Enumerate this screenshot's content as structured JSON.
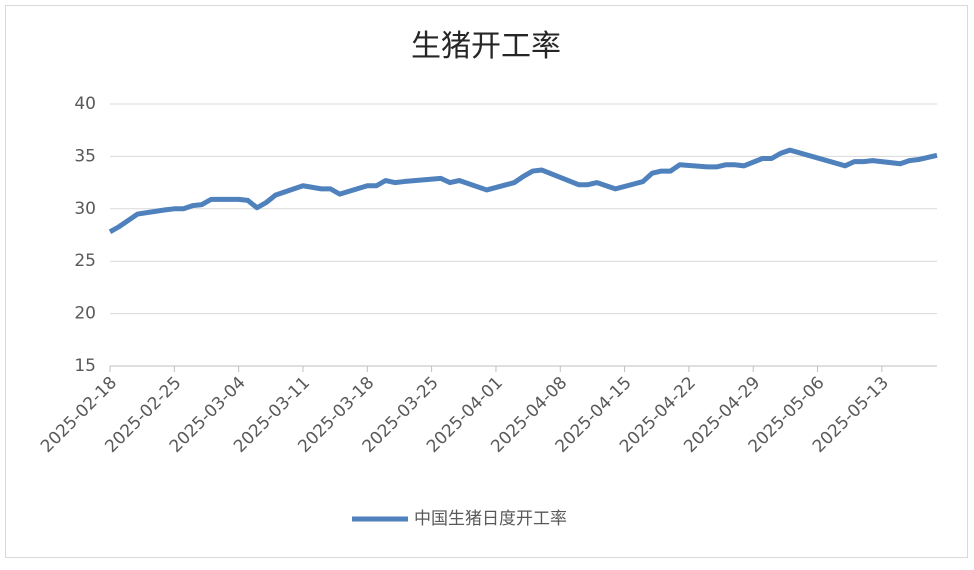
{
  "chart_data": {
    "type": "line",
    "title": "生猪开工率",
    "x": [
      "2025-02-18",
      "2025-02-19",
      "2025-02-20",
      "2025-02-21",
      "2025-02-24",
      "2025-02-25",
      "2025-02-26",
      "2025-02-27",
      "2025-02-28",
      "2025-03-01",
      "2025-03-03",
      "2025-03-04",
      "2025-03-05",
      "2025-03-06",
      "2025-03-07",
      "2025-03-08",
      "2025-03-11",
      "2025-03-13",
      "2025-03-14",
      "2025-03-15",
      "2025-03-18",
      "2025-03-19",
      "2025-03-20",
      "2025-03-21",
      "2025-03-22",
      "2025-03-26",
      "2025-03-27",
      "2025-03-28",
      "2025-03-31",
      "2025-04-03",
      "2025-04-04",
      "2025-04-05",
      "2025-04-06",
      "2025-04-10",
      "2025-04-11",
      "2025-04-12",
      "2025-04-14",
      "2025-04-17",
      "2025-04-18",
      "2025-04-19",
      "2025-04-20",
      "2025-04-21",
      "2025-04-24",
      "2025-04-25",
      "2025-04-26",
      "2025-04-27",
      "2025-04-28",
      "2025-04-30",
      "2025-05-01",
      "2025-05-02",
      "2025-05-03",
      "2025-05-09",
      "2025-05-10",
      "2025-05-11",
      "2025-05-12",
      "2025-05-15",
      "2025-05-16",
      "2025-05-17",
      "2025-05-18",
      "2025-05-19"
    ],
    "series": [
      {
        "name": "中国生猪日度开工率",
        "color": "#4f81bd",
        "values": [
          27.8,
          28.3,
          28.9,
          29.5,
          29.9,
          30.0,
          30.0,
          30.3,
          30.4,
          30.9,
          30.9,
          30.9,
          30.8,
          30.1,
          30.6,
          31.3,
          32.2,
          31.9,
          31.9,
          31.4,
          32.2,
          32.2,
          32.7,
          32.5,
          32.6,
          32.9,
          32.5,
          32.7,
          31.8,
          32.5,
          33.1,
          33.6,
          33.7,
          32.3,
          32.3,
          32.5,
          31.9,
          32.6,
          33.4,
          33.6,
          33.6,
          34.2,
          34.0,
          34.0,
          34.2,
          34.2,
          34.1,
          34.8,
          34.8,
          35.3,
          35.6,
          34.1,
          34.5,
          34.5,
          34.6,
          34.3,
          34.6,
          34.7,
          34.9,
          35.1
        ]
      }
    ],
    "xlim": [
      "2025-02-18",
      "2025-05-19"
    ],
    "xticks": [
      "2025-02-18",
      "2025-02-25",
      "2025-03-04",
      "2025-03-11",
      "2025-03-18",
      "2025-03-25",
      "2025-04-01",
      "2025-04-08",
      "2025-04-15",
      "2025-04-22",
      "2025-04-29",
      "2025-05-06",
      "2025-05-13"
    ],
    "ylim": [
      15,
      40
    ],
    "yticks": [
      15,
      20,
      25,
      30,
      35,
      40
    ],
    "grid": true,
    "legend": "bottom"
  }
}
